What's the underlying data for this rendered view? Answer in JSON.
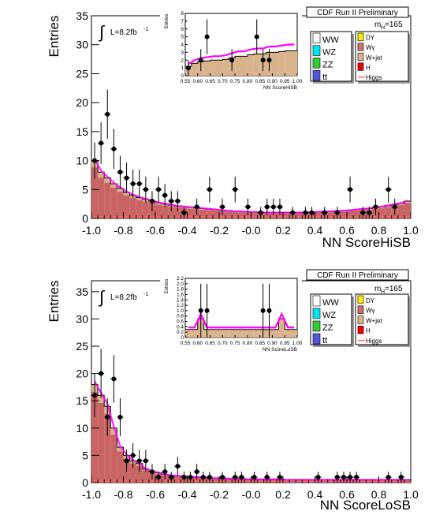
{
  "chart_data": [
    {
      "type": "histogram",
      "panel": "top",
      "header": "CDF Run II Preliminary",
      "lumi": "L=8.2fb",
      "lumi_sup": "-1",
      "mass_label": "m",
      "mass_sub": "H",
      "mass_value": "=165",
      "xlabel": "NN ScoreHiSB",
      "ylabel": "Entries",
      "xlim": [
        -1.0,
        1.0
      ],
      "ylim": [
        0,
        35
      ],
      "x_ticks": [
        "-1.0",
        "-0.8",
        "-0.6",
        "-0.4",
        "-0.2",
        "-0.0",
        "0.2",
        "0.4",
        "0.6",
        "0.8",
        "1.0"
      ],
      "y_ticks": [
        "0",
        "5",
        "10",
        "15",
        "20",
        "25",
        "30",
        "35"
      ],
      "bin_edges_start": -1.0,
      "bin_width": 0.04,
      "stack_total": [
        10.0,
        8.0,
        7.0,
        6.0,
        5.2,
        4.5,
        4.0,
        3.6,
        3.3,
        3.0,
        2.7,
        2.5,
        2.3,
        2.1,
        2.0,
        1.9,
        1.8,
        1.7,
        1.6,
        1.5,
        1.4,
        1.3,
        1.2,
        1.2,
        1.1,
        1.1,
        1.0,
        1.0,
        1.0,
        1.0,
        1.0,
        1.0,
        1.0,
        1.0,
        1.1,
        1.1,
        1.2,
        1.2,
        1.3,
        1.3,
        1.4,
        1.5,
        1.6,
        1.7,
        1.9,
        2.0,
        2.2,
        2.4,
        2.6,
        3.0
      ],
      "data_points": [
        {
          "x": -0.98,
          "y": 10
        },
        {
          "x": -0.94,
          "y": 13
        },
        {
          "x": -0.9,
          "y": 18
        },
        {
          "x": -0.86,
          "y": 12
        },
        {
          "x": -0.82,
          "y": 8
        },
        {
          "x": -0.78,
          "y": 7
        },
        {
          "x": -0.74,
          "y": 6
        },
        {
          "x": -0.7,
          "y": 6
        },
        {
          "x": -0.66,
          "y": 5
        },
        {
          "x": -0.62,
          "y": 3
        },
        {
          "x": -0.58,
          "y": 5
        },
        {
          "x": -0.54,
          "y": 4
        },
        {
          "x": -0.5,
          "y": 3
        },
        {
          "x": -0.46,
          "y": 3
        },
        {
          "x": -0.42,
          "y": 1
        },
        {
          "x": -0.34,
          "y": 2
        },
        {
          "x": -0.26,
          "y": 5
        },
        {
          "x": -0.18,
          "y": 2
        },
        {
          "x": -0.1,
          "y": 5
        },
        {
          "x": -0.02,
          "y": 2
        },
        {
          "x": 0.06,
          "y": 1
        },
        {
          "x": 0.1,
          "y": 2
        },
        {
          "x": 0.14,
          "y": 2
        },
        {
          "x": 0.18,
          "y": 2
        },
        {
          "x": 0.26,
          "y": 1
        },
        {
          "x": 0.34,
          "y": 1
        },
        {
          "x": 0.38,
          "y": 1
        },
        {
          "x": 0.46,
          "y": 1
        },
        {
          "x": 0.54,
          "y": 1
        },
        {
          "x": 0.62,
          "y": 5
        },
        {
          "x": 0.7,
          "y": 1
        },
        {
          "x": 0.74,
          "y": 1
        },
        {
          "x": 0.78,
          "y": 2
        },
        {
          "x": 0.86,
          "y": 5
        },
        {
          "x": 0.9,
          "y": 2
        }
      ],
      "inset": {
        "xlabel": "NN ScoreHiSB",
        "ylabel": "Entries",
        "xlim": [
          0.55,
          1.0
        ],
        "ylim": [
          0,
          8
        ],
        "x_ticks": [
          "0.55",
          "0.60",
          "0.65",
          "0.70",
          "0.75",
          "0.80",
          "0.85",
          "0.90",
          "0.95",
          "1.00"
        ],
        "y_ticks": [
          "0",
          "1",
          "2",
          "3",
          "4",
          "5",
          "6",
          "7",
          "8"
        ],
        "stack_total": [
          1.2,
          1.6,
          1.8,
          1.9,
          2.0,
          2.0,
          2.1,
          2.3,
          2.5,
          2.5,
          2.7,
          2.8,
          2.8,
          3.0,
          3.0,
          3.1,
          3.2,
          3.2
        ],
        "data_points": [
          {
            "x": 0.5625,
            "y": 1
          },
          {
            "x": 0.6125,
            "y": 2
          },
          {
            "x": 0.6375,
            "y": 5
          },
          {
            "x": 0.7375,
            "y": 2
          },
          {
            "x": 0.8375,
            "y": 5
          },
          {
            "x": 0.8625,
            "y": 2
          },
          {
            "x": 0.8875,
            "y": 2
          }
        ]
      },
      "legend": [
        {
          "label": "WW",
          "color": "#ffffff"
        },
        {
          "label": "WZ",
          "color": "#00e5ee"
        },
        {
          "label": "ZZ",
          "color": "#33cc33"
        },
        {
          "label": "tt",
          "color": "#5555dd"
        },
        {
          "label": "DY",
          "color": "#ffee00"
        },
        {
          "label": "Wγ",
          "color": "#cc7070"
        },
        {
          "label": "W+jet",
          "color": "#d9b38c"
        },
        {
          "label": "H",
          "color": "#ee0000"
        },
        {
          "label": "Higgs",
          "color": "#ff6666"
        }
      ]
    },
    {
      "type": "histogram",
      "panel": "bottom",
      "header": "CDF Run II Preliminary",
      "lumi": "L=8.2fb",
      "lumi_sup": "-1",
      "mass_label": "m",
      "mass_sub": "H",
      "mass_value": "=165",
      "xlabel": "NN ScoreLoSB",
      "ylabel": "Entries",
      "xlim": [
        -1.0,
        1.0
      ],
      "ylim": [
        0,
        37
      ],
      "x_ticks": [
        "-1.0",
        "-0.8",
        "-0.6",
        "-0.4",
        "-0.2",
        "-0.0",
        "0.2",
        "0.4",
        "0.6",
        "0.8",
        "1.0"
      ],
      "y_ticks": [
        "0",
        "5",
        "10",
        "15",
        "20",
        "25",
        "30",
        "35"
      ],
      "bin_edges_start": -1.0,
      "bin_width": 0.04,
      "stack_total": [
        18.0,
        16.0,
        14.0,
        10.0,
        6.5,
        5.0,
        4.0,
        3.5,
        2.5,
        2.0,
        1.8,
        1.5,
        1.3,
        1.2,
        1.2,
        1.0,
        1.0,
        0.9,
        0.8,
        0.8,
        0.8,
        0.7,
        0.7,
        0.7,
        0.6,
        0.6,
        0.6,
        0.6,
        0.6,
        0.6,
        0.5,
        0.5,
        0.5,
        0.5,
        0.5,
        0.5,
        0.5,
        0.5,
        0.5,
        0.5,
        0.5,
        0.5,
        0.5,
        0.5,
        0.5,
        0.5,
        0.5,
        0.5,
        0.5,
        0.5
      ],
      "data_points": [
        {
          "x": -0.98,
          "y": 16
        },
        {
          "x": -0.94,
          "y": 20
        },
        {
          "x": -0.9,
          "y": 12
        },
        {
          "x": -0.86,
          "y": 19
        },
        {
          "x": -0.82,
          "y": 12
        },
        {
          "x": -0.78,
          "y": 4
        },
        {
          "x": -0.74,
          "y": 5
        },
        {
          "x": -0.7,
          "y": 4
        },
        {
          "x": -0.66,
          "y": 4
        },
        {
          "x": -0.62,
          "y": 2
        },
        {
          "x": -0.58,
          "y": 1
        },
        {
          "x": -0.54,
          "y": 2
        },
        {
          "x": -0.5,
          "y": 1
        },
        {
          "x": -0.46,
          "y": 3
        },
        {
          "x": -0.42,
          "y": 1
        },
        {
          "x": -0.38,
          "y": 1
        },
        {
          "x": -0.34,
          "y": 2
        },
        {
          "x": -0.3,
          "y": 1
        },
        {
          "x": -0.26,
          "y": 1
        },
        {
          "x": -0.18,
          "y": 1
        },
        {
          "x": -0.1,
          "y": 1
        },
        {
          "x": -0.06,
          "y": 1
        },
        {
          "x": 0.02,
          "y": 1
        },
        {
          "x": 0.1,
          "y": 1
        },
        {
          "x": 0.18,
          "y": 1
        },
        {
          "x": 0.42,
          "y": 1
        },
        {
          "x": 0.54,
          "y": 1
        },
        {
          "x": 0.58,
          "y": 1
        },
        {
          "x": 0.62,
          "y": 1
        },
        {
          "x": 0.66,
          "y": 1
        },
        {
          "x": 0.86,
          "y": 1
        },
        {
          "x": 0.94,
          "y": 1
        }
      ],
      "inset": {
        "xlabel": "NN ScoreLoSB",
        "ylabel": "Entries",
        "xlim": [
          0.55,
          1.0
        ],
        "ylim": [
          0,
          2.2
        ],
        "x_ticks": [
          "0.55",
          "0.60",
          "0.65",
          "0.70",
          "0.75",
          "0.80",
          "0.85",
          "0.90",
          "0.95",
          "1.00"
        ],
        "y_ticks": [
          "0",
          "0.2",
          "0.4",
          "0.6",
          "0.8",
          "1.0",
          "1.2",
          "1.4",
          "1.6",
          "1.8",
          "2.0",
          "2.2"
        ],
        "stack_total": [
          0.3,
          0.3,
          0.7,
          0.3,
          0.3,
          0.3,
          0.3,
          0.3,
          0.3,
          0.3,
          0.3,
          0.3,
          0.3,
          0.3,
          0.3,
          0.7,
          0.3,
          0.3
        ],
        "data_points": [
          {
            "x": 0.6125,
            "y": 1.0
          },
          {
            "x": 0.6375,
            "y": 1.0
          },
          {
            "x": 0.8625,
            "y": 1.0
          },
          {
            "x": 0.8875,
            "y": 1.0
          }
        ]
      },
      "legend": [
        {
          "label": "WW",
          "color": "#ffffff"
        },
        {
          "label": "WZ",
          "color": "#00e5ee"
        },
        {
          "label": "ZZ",
          "color": "#33cc33"
        },
        {
          "label": "tt",
          "color": "#5555dd"
        },
        {
          "label": "DY",
          "color": "#ffee00"
        },
        {
          "label": "Wγ",
          "color": "#cc7070"
        },
        {
          "label": "W+jet",
          "color": "#d9b38c"
        },
        {
          "label": "H",
          "color": "#ee0000"
        },
        {
          "label": "Higgs",
          "color": "#ff6666"
        }
      ]
    }
  ]
}
